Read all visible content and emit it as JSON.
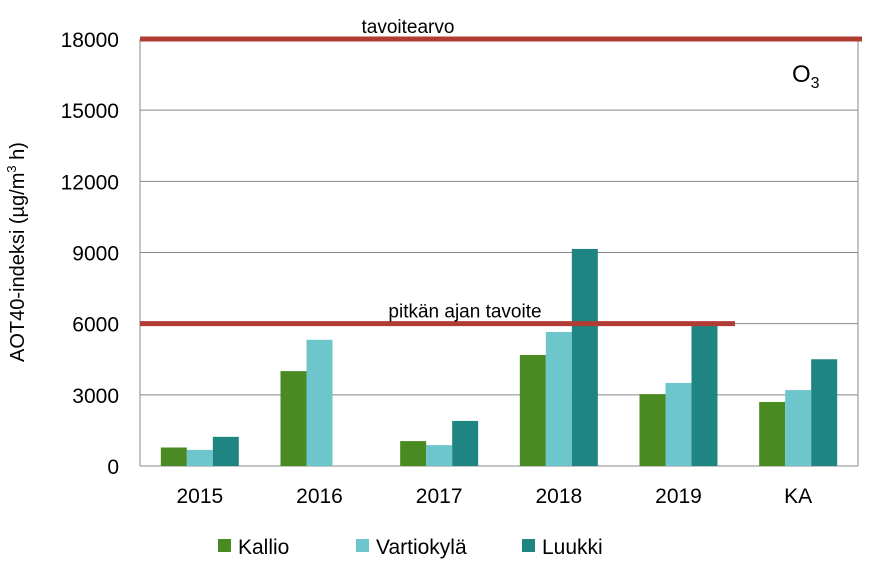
{
  "chart_data": {
    "type": "bar",
    "title": "",
    "xlabel": "",
    "ylabel": "AOT40-indeksi (µg/m³ h)",
    "ylabel_parts": {
      "pre": "AOT40-indeksi (µg/m",
      "sup": "3",
      "post": " h)"
    },
    "corner_label": {
      "base": "O",
      "sub": "3"
    },
    "ylim": [
      0,
      18000
    ],
    "yticks": [
      0,
      3000,
      6000,
      9000,
      12000,
      15000,
      18000
    ],
    "grid": true,
    "legend_position": "bottom",
    "categories": [
      "2015",
      "2016",
      "2017",
      "2018",
      "2019",
      "KA"
    ],
    "series": [
      {
        "name": "Kallio",
        "color": "#4a8a22",
        "values": [
          780,
          4000,
          1050,
          4680,
          3030,
          2700
        ]
      },
      {
        "name": "Vartiokylä",
        "color": "#6cc6cc",
        "values": [
          680,
          5320,
          880,
          5650,
          3500,
          3200
        ]
      },
      {
        "name": "Luukki",
        "color": "#1f8582",
        "values": [
          1230,
          null,
          1900,
          9150,
          6000,
          4500
        ]
      }
    ],
    "reference_lines": [
      {
        "label": "tavoitearvo",
        "value": 18000,
        "color": "#b13c34",
        "span": "full"
      },
      {
        "label": "pitkän ajan tavoite",
        "value": 6000,
        "color": "#b13c34",
        "span": "to-2019"
      }
    ]
  }
}
